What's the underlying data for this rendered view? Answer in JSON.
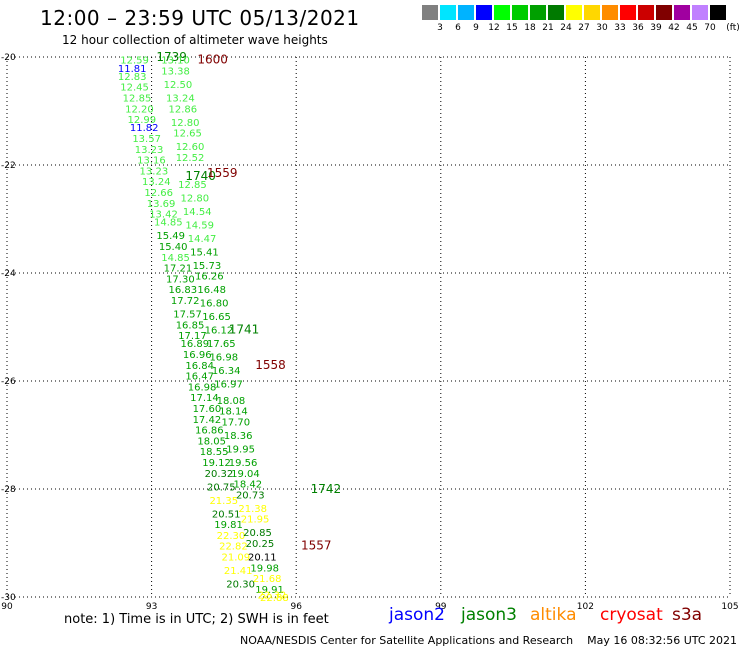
{
  "header": {
    "title": "12:00 – 23:59 UTC 05/13/2021",
    "subtitle": "12 hour collection of altimeter wave heights"
  },
  "scale": {
    "unit": "(ft)",
    "bins": [
      {
        "label": "",
        "color": "#808080"
      },
      {
        "label": "3",
        "color": "#00e5ff"
      },
      {
        "label": "6",
        "color": "#00b3ff"
      },
      {
        "label": "9",
        "color": "#0000ff"
      },
      {
        "label": "12",
        "color": "#00ff00"
      },
      {
        "label": "15",
        "color": "#00cc00"
      },
      {
        "label": "18",
        "color": "#00a000"
      },
      {
        "label": "21",
        "color": "#007a00"
      },
      {
        "label": "24",
        "color": "#ffff00"
      },
      {
        "label": "27",
        "color": "#ffd700"
      },
      {
        "label": "30",
        "color": "#ff8c00"
      },
      {
        "label": "33",
        "color": "#ff0000"
      },
      {
        "label": "36",
        "color": "#cc0000"
      },
      {
        "label": "39",
        "color": "#800000"
      },
      {
        "label": "42",
        "color": "#a000a0"
      },
      {
        "label": "45",
        "color": "#c080ff"
      },
      {
        "label": "70",
        "color": "#000000"
      }
    ]
  },
  "map": {
    "lat_ticks": [
      "-20",
      "-22",
      "-24",
      "-26",
      "-28",
      "-30"
    ],
    "lon_ticks": [
      "90",
      "93",
      "96",
      "99",
      "102",
      "105"
    ],
    "lat_range": [
      -30,
      -20
    ],
    "lon_range": [
      90,
      105
    ],
    "grid": "dotted",
    "satellites": {
      "jason2": "#0000ff",
      "jason3": "#008000",
      "altika": "#ff8c00",
      "cryosat": "#ff0000",
      "s3a": "#800000"
    },
    "tracks": [
      {
        "time_label": "1739",
        "label_sat": "jason3",
        "label_lat": -20.0,
        "label_lon": 93.1,
        "points": [
          {
            "lat": -20.05,
            "lon": 92.35,
            "v": "12.59",
            "c": "#44ee44"
          },
          {
            "lat": -20.2,
            "lon": 92.3,
            "v": "11.81",
            "c": "#0000ff"
          },
          {
            "lat": -20.35,
            "lon": 92.3,
            "v": "12.83",
            "c": "#44ee44"
          },
          {
            "lat": -20.55,
            "lon": 92.35,
            "v": "12.45",
            "c": "#44ee44"
          },
          {
            "lat": -20.75,
            "lon": 92.4,
            "v": "12.85",
            "c": "#44ee44"
          },
          {
            "lat": -20.95,
            "lon": 92.45,
            "v": "12.20",
            "c": "#44ee44"
          },
          {
            "lat": -21.15,
            "lon": 92.5,
            "v": "12.99",
            "c": "#44ee44"
          },
          {
            "lat": -21.3,
            "lon": 92.55,
            "v": "11.82",
            "c": "#0000ff"
          },
          {
            "lat": -21.5,
            "lon": 92.6,
            "v": "13.57",
            "c": "#44ee44"
          },
          {
            "lat": -21.7,
            "lon": 92.65,
            "v": "13.23",
            "c": "#44ee44"
          },
          {
            "lat": -21.9,
            "lon": 92.7,
            "v": "13.16",
            "c": "#44ee44"
          },
          {
            "lat": -22.1,
            "lon": 92.75,
            "v": "13.23",
            "c": "#44ee44"
          },
          {
            "lat": -22.3,
            "lon": 92.8,
            "v": "13.24",
            "c": "#44ee44"
          },
          {
            "lat": -22.5,
            "lon": 92.85,
            "v": "12.66",
            "c": "#44ee44"
          },
          {
            "lat": -22.7,
            "lon": 92.9,
            "v": "13.69",
            "c": "#44ee44"
          },
          {
            "lat": -22.9,
            "lon": 92.95,
            "v": "13.42",
            "c": "#44ee44"
          },
          {
            "lat": -23.05,
            "lon": 93.05,
            "v": "14.85",
            "c": "#44ee44"
          },
          {
            "lat": -23.3,
            "lon": 93.1,
            "v": "15.49",
            "c": "#00a000"
          },
          {
            "lat": -23.5,
            "lon": 93.15,
            "v": "15.40",
            "c": "#00a000"
          },
          {
            "lat": -23.7,
            "lon": 93.2,
            "v": "14.85",
            "c": "#44ee44"
          },
          {
            "lat": -23.9,
            "lon": 93.25,
            "v": "17.21",
            "c": "#00a000"
          },
          {
            "lat": -24.1,
            "lon": 93.3,
            "v": "17.30",
            "c": "#00a000"
          },
          {
            "lat": -24.3,
            "lon": 93.35,
            "v": "16.83",
            "c": "#00a000"
          },
          {
            "lat": -24.5,
            "lon": 93.4,
            "v": "17.72",
            "c": "#00a000"
          },
          {
            "lat": -24.75,
            "lon": 93.45,
            "v": "17.57",
            "c": "#00a000"
          },
          {
            "lat": -24.95,
            "lon": 93.5,
            "v": "16.85",
            "c": "#00a000"
          },
          {
            "lat": -25.15,
            "lon": 93.55,
            "v": "17.17",
            "c": "#00a000"
          },
          {
            "lat": -25.3,
            "lon": 93.6,
            "v": "16.89",
            "c": "#00a000"
          },
          {
            "lat": -25.5,
            "lon": 93.65,
            "v": "16.96",
            "c": "#00a000"
          },
          {
            "lat": -25.7,
            "lon": 93.7,
            "v": "16.84",
            "c": "#00a000"
          },
          {
            "lat": -25.9,
            "lon": 93.7,
            "v": "16.47",
            "c": "#00a000"
          },
          {
            "lat": -26.1,
            "lon": 93.75,
            "v": "16.98",
            "c": "#00a000"
          },
          {
            "lat": -26.3,
            "lon": 93.8,
            "v": "17.14",
            "c": "#00a000"
          },
          {
            "lat": -26.5,
            "lon": 93.85,
            "v": "17.60",
            "c": "#00a000"
          },
          {
            "lat": -26.7,
            "lon": 93.85,
            "v": "17.42",
            "c": "#00a000"
          },
          {
            "lat": -26.9,
            "lon": 93.9,
            "v": "16.86",
            "c": "#00a000"
          },
          {
            "lat": -27.1,
            "lon": 93.95,
            "v": "18.05",
            "c": "#00a000"
          },
          {
            "lat": -27.3,
            "lon": 94.0,
            "v": "18.55",
            "c": "#00a000"
          },
          {
            "lat": -27.5,
            "lon": 94.05,
            "v": "19.12",
            "c": "#00a000"
          },
          {
            "lat": -27.7,
            "lon": 94.1,
            "v": "20.32",
            "c": "#007a00"
          },
          {
            "lat": -27.95,
            "lon": 94.15,
            "v": "20.75",
            "c": "#007a00"
          },
          {
            "lat": -28.2,
            "lon": 94.2,
            "v": "21.35",
            "c": "#ffff00"
          },
          {
            "lat": -28.45,
            "lon": 94.25,
            "v": "20.51",
            "c": "#007a00"
          },
          {
            "lat": -28.65,
            "lon": 94.3,
            "v": "19.81",
            "c": "#00a000"
          },
          {
            "lat": -28.85,
            "lon": 94.35,
            "v": "22.30",
            "c": "#ffff00"
          },
          {
            "lat": -29.05,
            "lon": 94.4,
            "v": "22.82",
            "c": "#ffff00"
          },
          {
            "lat": -29.25,
            "lon": 94.45,
            "v": "21.09",
            "c": "#ffff00"
          },
          {
            "lat": -29.5,
            "lon": 94.5,
            "v": "21.41",
            "c": "#ffff00"
          },
          {
            "lat": -29.75,
            "lon": 94.55,
            "v": "20.30",
            "c": "#007a00"
          }
        ]
      },
      {
        "time_label": "1740",
        "label_sat": "jason3",
        "label_lat": -22.2,
        "label_lon": 93.7,
        "points": [
          {
            "lat": -20.05,
            "lon": 93.2,
            "v": "13.10",
            "c": "#44ee44"
          },
          {
            "lat": -20.25,
            "lon": 93.2,
            "v": "13.38",
            "c": "#44ee44"
          },
          {
            "lat": -20.5,
            "lon": 93.25,
            "v": "12.50",
            "c": "#44ee44"
          },
          {
            "lat": -20.75,
            "lon": 93.3,
            "v": "13.24",
            "c": "#44ee44"
          },
          {
            "lat": -20.95,
            "lon": 93.35,
            "v": "12.86",
            "c": "#44ee44"
          },
          {
            "lat": -21.2,
            "lon": 93.4,
            "v": "12.80",
            "c": "#44ee44"
          },
          {
            "lat": -21.4,
            "lon": 93.45,
            "v": "12.65",
            "c": "#44ee44"
          },
          {
            "lat": -21.65,
            "lon": 93.5,
            "v": "12.60",
            "c": "#44ee44"
          },
          {
            "lat": -21.85,
            "lon": 93.5,
            "v": "12.52",
            "c": "#44ee44"
          },
          {
            "lat": -22.35,
            "lon": 93.55,
            "v": "12.85",
            "c": "#44ee44"
          },
          {
            "lat": -22.6,
            "lon": 93.6,
            "v": "12.80",
            "c": "#44ee44"
          },
          {
            "lat": -22.85,
            "lon": 93.65,
            "v": "14.54",
            "c": "#44ee44"
          },
          {
            "lat": -23.1,
            "lon": 93.7,
            "v": "14.59",
            "c": "#44ee44"
          },
          {
            "lat": -23.35,
            "lon": 93.75,
            "v": "14.47",
            "c": "#44ee44"
          },
          {
            "lat": -23.6,
            "lon": 93.8,
            "v": "15.41",
            "c": "#00a000"
          },
          {
            "lat": -23.85,
            "lon": 93.85,
            "v": "15.73",
            "c": "#00a000"
          },
          {
            "lat": -24.05,
            "lon": 93.9,
            "v": "16.26",
            "c": "#00a000"
          },
          {
            "lat": -24.3,
            "lon": 93.95,
            "v": "16.48",
            "c": "#00a000"
          },
          {
            "lat": -24.55,
            "lon": 94.0,
            "v": "16.80",
            "c": "#00a000"
          },
          {
            "lat": -24.8,
            "lon": 94.05,
            "v": "16.65",
            "c": "#00a000"
          },
          {
            "lat": -25.05,
            "lon": 94.1,
            "v": "16.12",
            "c": "#00a000"
          },
          {
            "lat": -25.3,
            "lon": 94.15,
            "v": "17.65",
            "c": "#00a000"
          },
          {
            "lat": -25.55,
            "lon": 94.2,
            "v": "16.98",
            "c": "#00a000"
          },
          {
            "lat": -25.8,
            "lon": 94.25,
            "v": "16.34",
            "c": "#00a000"
          },
          {
            "lat": -26.05,
            "lon": 94.3,
            "v": "16.97",
            "c": "#00a000"
          },
          {
            "lat": -26.35,
            "lon": 94.35,
            "v": "18.08",
            "c": "#00a000"
          },
          {
            "lat": -26.55,
            "lon": 94.4,
            "v": "18.14",
            "c": "#00a000"
          },
          {
            "lat": -26.75,
            "lon": 94.45,
            "v": "17.70",
            "c": "#00a000"
          },
          {
            "lat": -27.0,
            "lon": 94.5,
            "v": "18.36",
            "c": "#00a000"
          },
          {
            "lat": -27.25,
            "lon": 94.55,
            "v": "19.95",
            "c": "#00a000"
          },
          {
            "lat": -27.5,
            "lon": 94.6,
            "v": "19.56",
            "c": "#00a000"
          },
          {
            "lat": -27.7,
            "lon": 94.65,
            "v": "19.04",
            "c": "#00a000"
          },
          {
            "lat": -27.9,
            "lon": 94.7,
            "v": "18.42",
            "c": "#00a000"
          },
          {
            "lat": -28.1,
            "lon": 94.75,
            "v": "20.73",
            "c": "#007a00"
          },
          {
            "lat": -28.35,
            "lon": 94.8,
            "v": "21.38",
            "c": "#ffff00"
          },
          {
            "lat": -28.55,
            "lon": 94.85,
            "v": "21.95",
            "c": "#ffff00"
          },
          {
            "lat": -28.8,
            "lon": 94.9,
            "v": "20.85",
            "c": "#007a00"
          },
          {
            "lat": -29.0,
            "lon": 94.95,
            "v": "20.25",
            "c": "#007a00"
          },
          {
            "lat": -29.25,
            "lon": 95.0,
            "v": "20.11",
            "c": "#000000"
          },
          {
            "lat": -29.45,
            "lon": 95.05,
            "v": "19.98",
            "c": "#00a000"
          },
          {
            "lat": -29.65,
            "lon": 95.1,
            "v": "21.68",
            "c": "#ffff00"
          },
          {
            "lat": -29.85,
            "lon": 95.15,
            "v": "19.91",
            "c": "#00a000"
          },
          {
            "lat": -29.95,
            "lon": 95.2,
            "v": "22.32",
            "c": "#ffff00"
          },
          {
            "lat": -30.0,
            "lon": 95.25,
            "v": "22.88",
            "c": "#ffff00"
          }
        ]
      }
    ],
    "labels": [
      {
        "text": "1600",
        "lat": -20.05,
        "lon": 93.95,
        "sat": "s3a"
      },
      {
        "text": "1559",
        "lat": -22.15,
        "lon": 94.15,
        "sat": "s3a"
      },
      {
        "text": "1741",
        "lat": -25.05,
        "lon": 94.6,
        "sat": "jason3"
      },
      {
        "text": "1558",
        "lat": -25.7,
        "lon": 95.15,
        "sat": "s3a"
      },
      {
        "text": "1742",
        "lat": -28.0,
        "lon": 96.3,
        "sat": "jason3"
      },
      {
        "text": "1557",
        "lat": -29.05,
        "lon": 96.1,
        "sat": "s3a"
      }
    ]
  },
  "footer": {
    "note": "note: 1) Time is in UTC; 2) SWH is in feet",
    "legend": [
      {
        "name": "jason2",
        "color": "#0000ff"
      },
      {
        "name": "jason3",
        "color": "#008000"
      },
      {
        "name": "altika",
        "color": "#ff8c00"
      },
      {
        "name": "cryosat",
        "color": "#ff0000"
      },
      {
        "name": "s3a",
        "color": "#800000"
      }
    ],
    "credit": "NOAA/NESDIS Center for Satellite Applications and Research    May 16 08:32:56 UTC 2021"
  }
}
